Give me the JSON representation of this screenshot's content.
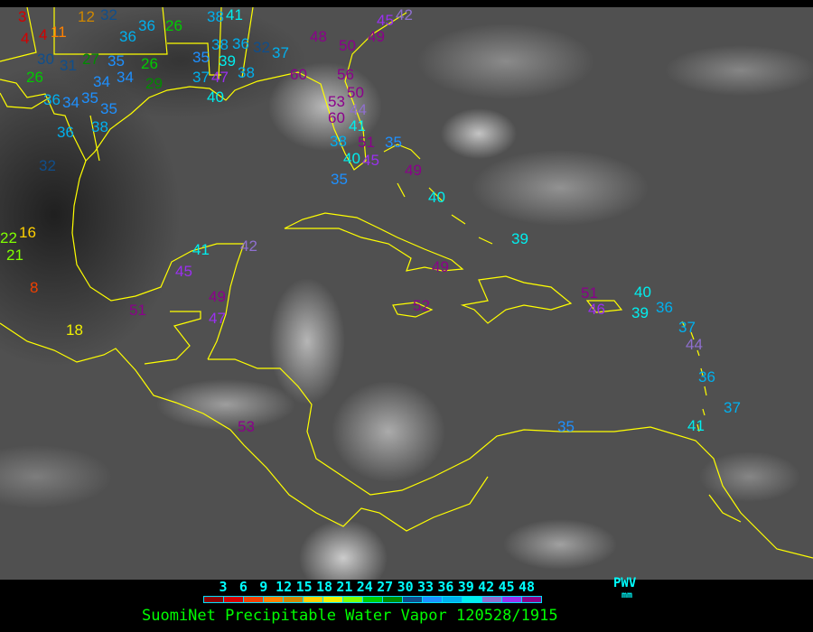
{
  "title": "SuomiNet Precipitable Water Vapor 120528/1915",
  "legend": {
    "label": "PWV",
    "unit": "mm",
    "ticks": [
      "3",
      "6",
      "9",
      "12",
      "15",
      "18",
      "21",
      "24",
      "27",
      "30",
      "33",
      "36",
      "39",
      "42",
      "45",
      "48"
    ],
    "colors": [
      "#8b0000",
      "#d40000",
      "#f04000",
      "#ff8000",
      "#d08800",
      "#ffd000",
      "#f0f000",
      "#80ff00",
      "#00cc00",
      "#008c00",
      "#104e8b",
      "#1e90ff",
      "#00b0ee",
      "#00eeee",
      "#8f6fd0",
      "#9a30f0",
      "#8b008b"
    ]
  },
  "coastline_color": "#ffff00",
  "stations": [
    "3",
    "4",
    "4",
    "12",
    "11",
    "32",
    "36",
    "36",
    "26",
    "38",
    "41",
    "38",
    "36",
    "32",
    "30",
    "26",
    "31",
    "27",
    "35",
    "34",
    "34",
    "26",
    "29",
    "35",
    "36",
    "34",
    "38",
    "36",
    "32",
    "35",
    "37",
    "35",
    "39",
    "40",
    "47",
    "38",
    "37",
    "48",
    "50",
    "49",
    "45",
    "42",
    "60",
    "56",
    "50",
    "53",
    "60",
    "44",
    "41",
    "38",
    "51",
    "40",
    "45",
    "35",
    "35",
    "49",
    "40",
    "39",
    "16",
    "22",
    "21",
    "8",
    "18",
    "41",
    "42",
    "45",
    "51",
    "49",
    "47",
    "53",
    "49",
    "52",
    "51",
    "46",
    "40",
    "36",
    "39",
    "37",
    "44",
    "36",
    "37",
    "41",
    "35"
  ]
}
